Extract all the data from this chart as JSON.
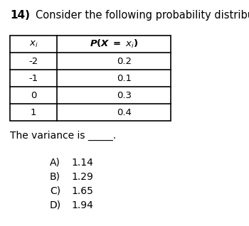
{
  "question_number": "14)",
  "question_text": "Consider the following probability distribution.",
  "col1_header": "$x_i$",
  "col2_header": "$P(X = x_i)$",
  "xi_values": [
    "-2",
    "-1",
    "0",
    "1"
  ],
  "prob_values": [
    "0.2",
    "0.1",
    "0.3",
    "0.4"
  ],
  "blank_text": "The variance is _____.",
  "choice_labels": [
    "A)",
    "B)",
    "C)",
    "D)"
  ],
  "choice_vals": [
    "1.14",
    "1.29",
    "1.65",
    "1.94"
  ],
  "bg_color": "#ffffff",
  "text_color": "#000000",
  "table_line_color": "#000000",
  "fig_width": 3.5,
  "fig_height": 3.18,
  "dpi": 100
}
